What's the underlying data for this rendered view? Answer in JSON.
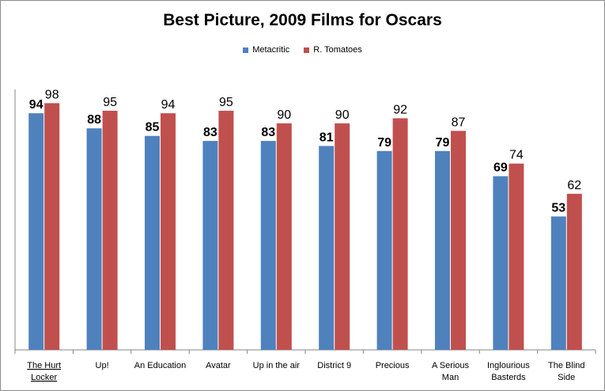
{
  "chart_data": {
    "type": "bar",
    "title": "Best Picture, 2009  Films for Oscars",
    "categories": [
      [
        "The Hurt",
        "Locker"
      ],
      [
        "Up!"
      ],
      [
        "An Education"
      ],
      [
        "Avatar"
      ],
      [
        "Up in the air"
      ],
      [
        "District 9"
      ],
      [
        "Precious"
      ],
      [
        "A Serious",
        "Man"
      ],
      [
        "Inglourious",
        "Basterds"
      ],
      [
        "The Blind",
        "Side"
      ]
    ],
    "series": [
      {
        "name": "Metacritic",
        "color": "#4f81bd",
        "values": [
          94,
          88,
          85,
          83,
          83,
          81,
          79,
          79,
          69,
          53
        ]
      },
      {
        "name": "R. Tomatoes",
        "color": "#c0504d",
        "values": [
          98,
          95,
          94,
          95,
          90,
          90,
          92,
          87,
          74,
          62
        ]
      }
    ],
    "ylim": [
      0,
      100
    ],
    "legend_position": "top-center",
    "grid": false,
    "data_labels": true
  }
}
